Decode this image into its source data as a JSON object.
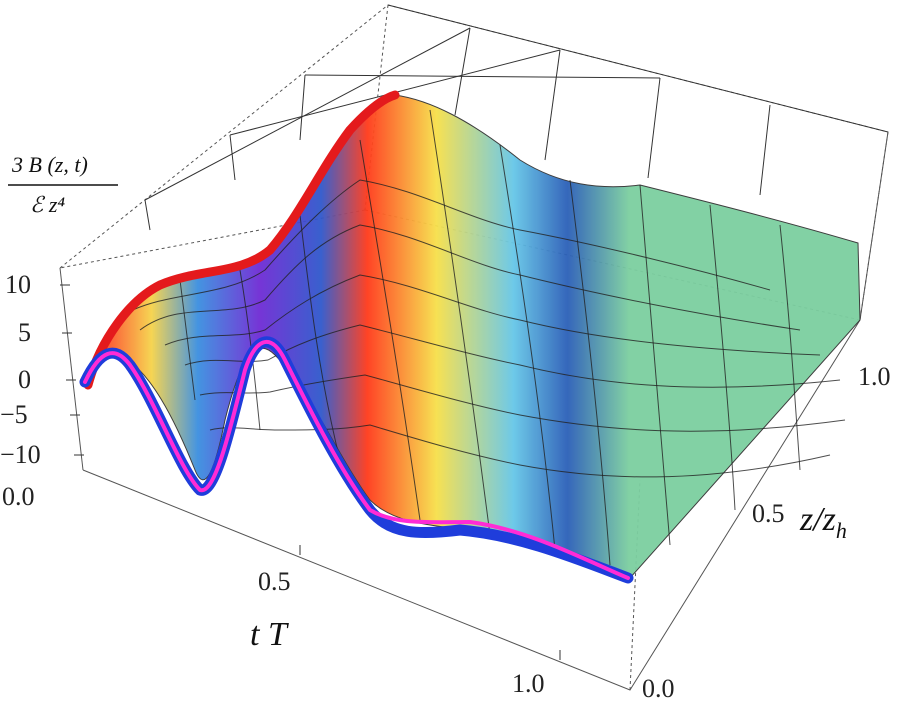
{
  "chart_data": {
    "type": "surface3d",
    "zlabel": {
      "numerator": "3 B (z, t)",
      "denominator": "ℰ z⁴"
    },
    "z_ticks": [
      "10",
      "5",
      "0",
      "−5",
      "−10"
    ],
    "t_axis": {
      "label": "t T",
      "ticks": [
        "0.0",
        "0.5",
        "1.0"
      ]
    },
    "z_axis": {
      "label": "z/z_h",
      "ticks": [
        "0.0",
        "0.5",
        "1.0"
      ]
    },
    "zlim": [
      -12,
      12
    ],
    "curves": [
      {
        "name": "",
        "color": "#e41a1c",
        "description_free": true
      },
      {
        "name": "",
        "color": "#1f3ddb"
      },
      {
        "name": "",
        "color": "#ff2bd6"
      }
    ],
    "colors": {
      "surface_low": "#5a2bd6",
      "surface_mid": "#6ad0e0",
      "surface_high": "#ff3a1a",
      "flat": "#7ccfa0"
    }
  }
}
